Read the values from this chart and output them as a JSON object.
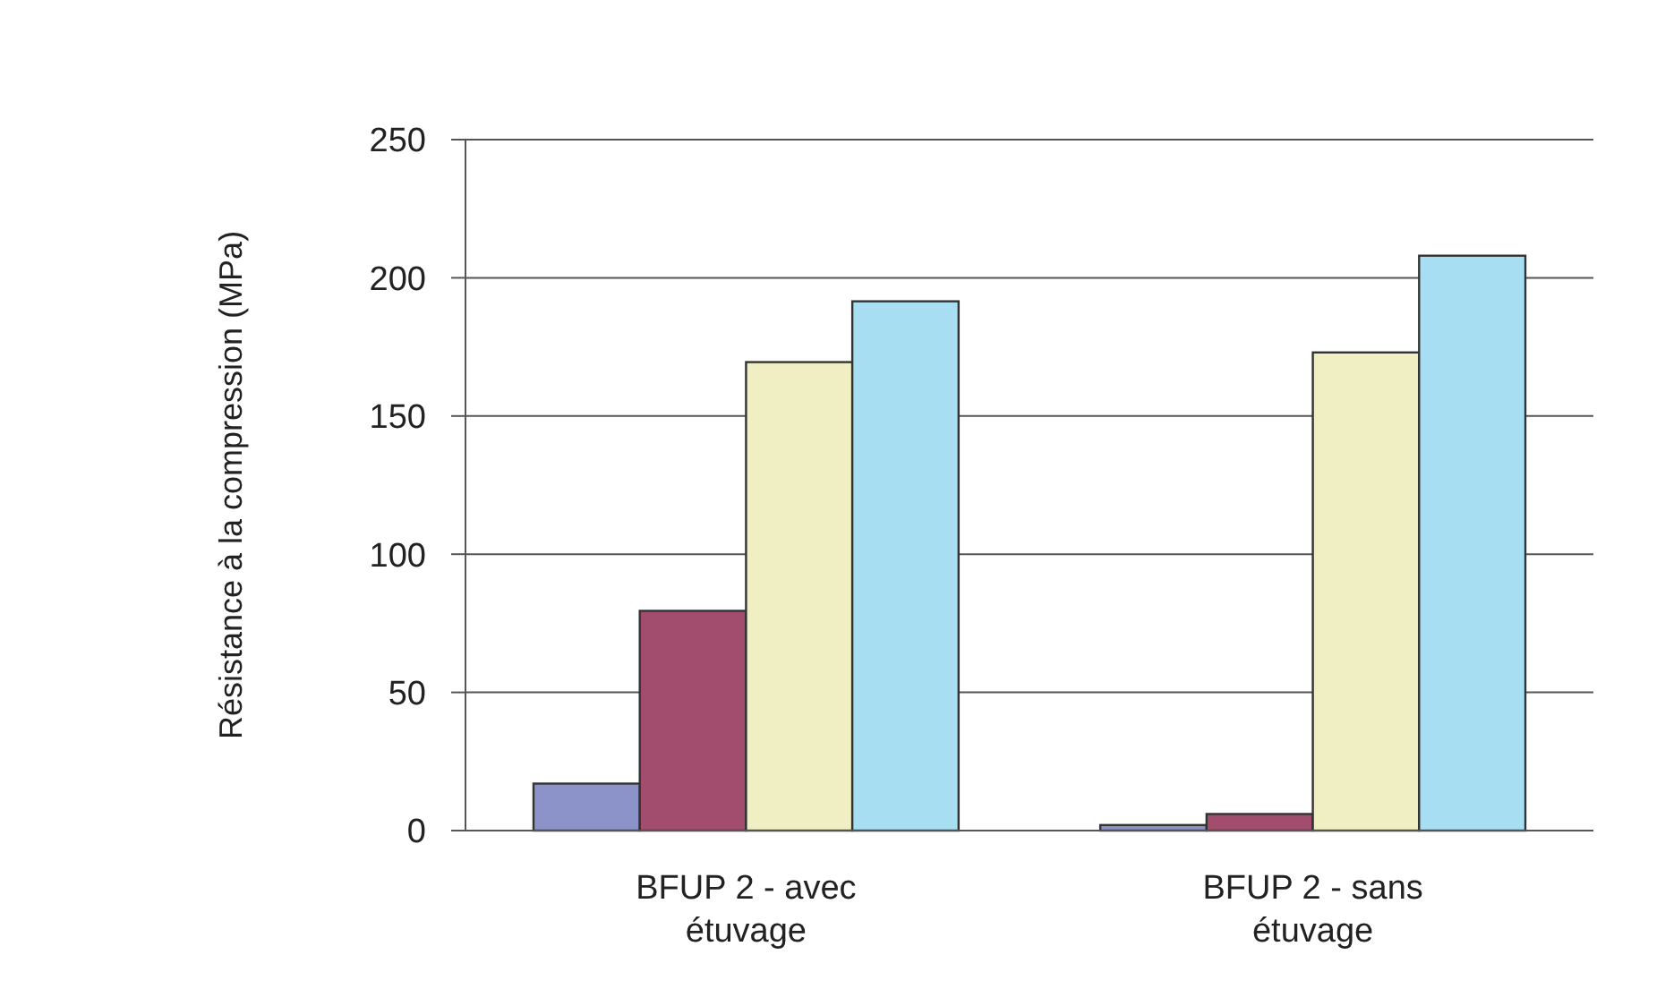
{
  "chart_data": {
    "type": "bar",
    "ylabel": "Résistance à la compression (MPa)",
    "categories": [
      "BFUP 2 - avec étuvage",
      "BFUP 2 - sans étuvage"
    ],
    "series": [
      {
        "color": "#8b93c9",
        "values": [
          17,
          2
        ]
      },
      {
        "color": "#a34d6e",
        "values": [
          79.5,
          6
        ]
      },
      {
        "color": "#f0efc4",
        "values": [
          169.5,
          173
        ]
      },
      {
        "color": "#a8def2",
        "values": [
          191.5,
          208
        ]
      }
    ],
    "ylim": [
      0,
      250
    ],
    "yticks": [
      0,
      50,
      100,
      150,
      200,
      250
    ],
    "grid": "y"
  }
}
